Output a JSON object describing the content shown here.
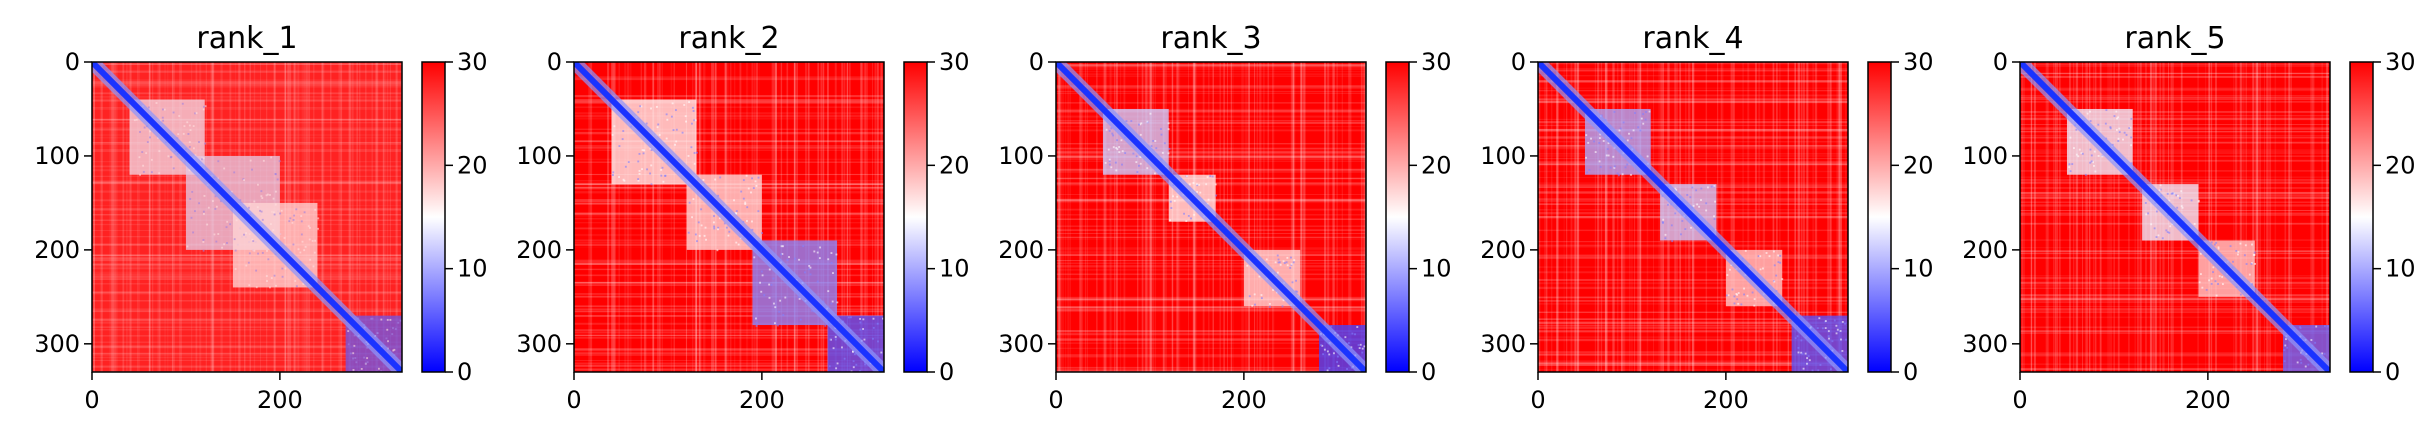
{
  "figure": {
    "colorbar": {
      "colors": [
        "#0000ff",
        "#ffffff",
        "#ff0000"
      ]
    },
    "background_color": "#ff0000",
    "diagonal_color": "#1a33ff"
  },
  "chart_data": [
    {
      "type": "heatmap",
      "title": "rank_1",
      "size": 330,
      "xlim": [
        0,
        330
      ],
      "ylim": [
        330,
        0
      ],
      "xticks": [
        0,
        200
      ],
      "yticks": [
        0,
        100,
        200,
        300
      ],
      "colorbar": {
        "vmin": 0,
        "vmax": 30,
        "ticks": [
          0,
          10,
          20,
          30
        ]
      },
      "domains": [
        {
          "start": 40,
          "end": 120,
          "value": 14
        },
        {
          "start": 100,
          "end": 200,
          "value": 13
        },
        {
          "start": 150,
          "end": 240,
          "value": 16
        },
        {
          "start": 270,
          "end": 330,
          "value": 4
        },
        {
          "start": 0,
          "end": 330,
          "value": 22
        }
      ]
    },
    {
      "type": "heatmap",
      "title": "rank_2",
      "size": 330,
      "xlim": [
        0,
        330
      ],
      "ylim": [
        330,
        0
      ],
      "xticks": [
        0,
        200
      ],
      "yticks": [
        0,
        100,
        200,
        300
      ],
      "colorbar": {
        "vmin": 0,
        "vmax": 30,
        "ticks": [
          0,
          10,
          20,
          30
        ]
      },
      "domains": [
        {
          "start": 40,
          "end": 130,
          "value": 16
        },
        {
          "start": 120,
          "end": 200,
          "value": 17
        },
        {
          "start": 190,
          "end": 280,
          "value": 8
        },
        {
          "start": 270,
          "end": 330,
          "value": 5
        }
      ]
    },
    {
      "type": "heatmap",
      "title": "rank_3",
      "size": 330,
      "xlim": [
        0,
        330
      ],
      "ylim": [
        330,
        0
      ],
      "xticks": [
        0,
        200
      ],
      "yticks": [
        0,
        100,
        200,
        300
      ],
      "colorbar": {
        "vmin": 0,
        "vmax": 30,
        "ticks": [
          0,
          10,
          20,
          30
        ]
      },
      "domains": [
        {
          "start": 50,
          "end": 120,
          "value": 12
        },
        {
          "start": 120,
          "end": 170,
          "value": 16
        },
        {
          "start": 200,
          "end": 260,
          "value": 17
        },
        {
          "start": 280,
          "end": 330,
          "value": 4
        }
      ]
    },
    {
      "type": "heatmap",
      "title": "rank_4",
      "size": 330,
      "xlim": [
        0,
        330
      ],
      "ylim": [
        330,
        0
      ],
      "xticks": [
        0,
        200
      ],
      "yticks": [
        0,
        100,
        200,
        300
      ],
      "colorbar": {
        "vmin": 0,
        "vmax": 30,
        "ticks": [
          0,
          10,
          20,
          30
        ]
      },
      "domains": [
        {
          "start": 50,
          "end": 120,
          "value": 10
        },
        {
          "start": 130,
          "end": 190,
          "value": 12
        },
        {
          "start": 200,
          "end": 260,
          "value": 18
        },
        {
          "start": 270,
          "end": 330,
          "value": 5
        }
      ]
    },
    {
      "type": "heatmap",
      "title": "rank_5",
      "size": 330,
      "xlim": [
        0,
        330
      ],
      "ylim": [
        330,
        0
      ],
      "xticks": [
        0,
        200
      ],
      "yticks": [
        0,
        100,
        200,
        300
      ],
      "colorbar": {
        "vmin": 0,
        "vmax": 30,
        "ticks": [
          0,
          10,
          20,
          30
        ]
      },
      "domains": [
        {
          "start": 50,
          "end": 120,
          "value": 14
        },
        {
          "start": 130,
          "end": 190,
          "value": 14
        },
        {
          "start": 190,
          "end": 250,
          "value": 18
        },
        {
          "start": 280,
          "end": 330,
          "value": 6
        }
      ]
    }
  ]
}
